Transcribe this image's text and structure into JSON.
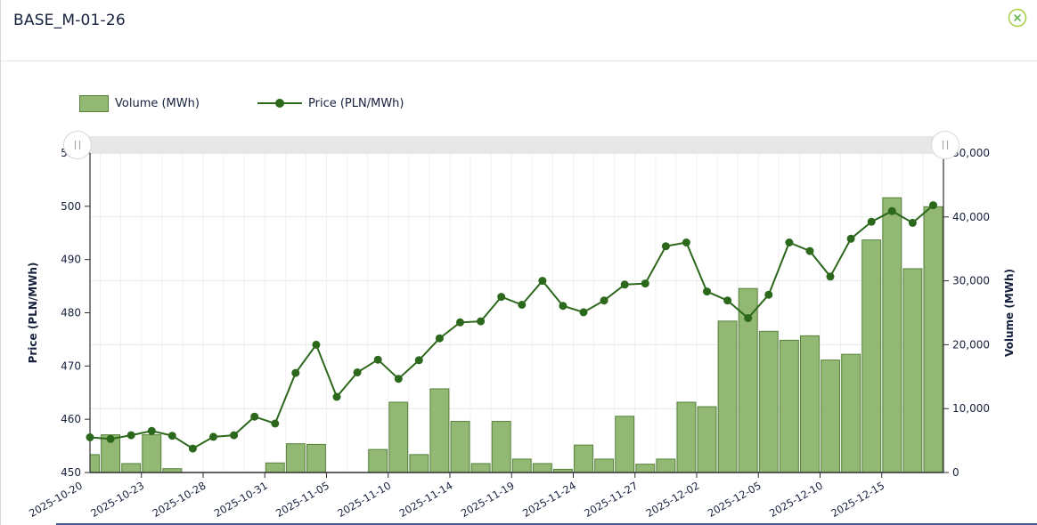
{
  "window": {
    "title": "BASE_M-01-26"
  },
  "legend": {
    "volume_label": "Volume (MWh)",
    "price_label": "Price (PLN/MWh)"
  },
  "colors": {
    "bar_fill": "#92b873",
    "bar_stroke": "#55823b",
    "line": "#2c681c",
    "grid_h": "#e7e7e7",
    "grid_v": "#f1f1f1",
    "axis": "#2f2f2f",
    "text": "#16213e",
    "scrollbar_track": "#e7e7e7",
    "handle_fill": "#ffffff",
    "handle_stroke": "#d6d6d6",
    "handle_glyph": "#aaaaaa",
    "close_circle": "#abd14c",
    "close_x": "#5cb748"
  },
  "chart_data": {
    "type": "bar+line",
    "x": [
      "2025-10-20",
      "2025-10-21",
      "2025-10-22",
      "2025-10-23",
      "2025-10-24",
      "2025-10-27",
      "2025-10-28",
      "2025-10-29",
      "2025-10-30",
      "2025-10-31",
      "2025-11-03",
      "2025-11-04",
      "2025-11-05",
      "2025-11-06",
      "2025-11-07",
      "2025-11-10",
      "2025-11-12",
      "2025-11-13",
      "2025-11-14",
      "2025-11-17",
      "2025-11-18",
      "2025-11-19",
      "2025-11-20",
      "2025-11-21",
      "2025-11-24",
      "2025-11-25",
      "2025-11-26",
      "2025-11-27",
      "2025-11-28",
      "2025-12-01",
      "2025-12-02",
      "2025-12-03",
      "2025-12-04",
      "2025-12-05",
      "2025-12-08",
      "2025-12-09",
      "2025-12-10",
      "2025-12-11",
      "2025-12-12",
      "2025-12-15",
      "2025-12-16",
      "2025-12-17"
    ],
    "labeled_x_indices": [
      0,
      3,
      6,
      9,
      12,
      15,
      18,
      21,
      24,
      27,
      30,
      33,
      36,
      39
    ],
    "series": [
      {
        "name": "Volume (MWh)",
        "type": "bar",
        "yaxis": "right",
        "values": [
          2800,
          5900,
          1400,
          5900,
          600,
          0,
          0,
          0,
          0,
          1500,
          4500,
          4400,
          0,
          0,
          3600,
          11000,
          2800,
          13100,
          8000,
          1400,
          8000,
          2100,
          1400,
          500,
          4300,
          2100,
          8800,
          1300,
          2100,
          11000,
          10300,
          23700,
          28800,
          22100,
          20700,
          21400,
          17600,
          18500,
          36400,
          43000,
          31900,
          41600
        ]
      },
      {
        "name": "Price (PLN/MWh)",
        "type": "line",
        "yaxis": "left",
        "values": [
          456.6,
          456.3,
          457.0,
          457.8,
          456.9,
          454.5,
          456.7,
          457.0,
          460.5,
          459.2,
          468.7,
          474.0,
          464.2,
          468.8,
          471.2,
          467.6,
          471.1,
          475.2,
          478.2,
          478.4,
          483.0,
          481.5,
          486.0,
          481.3,
          480.1,
          482.3,
          485.3,
          485.5,
          492.5,
          493.2,
          484.0,
          482.3,
          479.0,
          483.4,
          493.2,
          491.6,
          486.8,
          493.9,
          497.1,
          499.1,
          496.9,
          500.2
        ]
      }
    ],
    "left_axis": {
      "title": "Price (PLN/MWh)",
      "min": 450,
      "max": 510,
      "tick_labels": [
        "450",
        "460",
        "470",
        "480",
        "490",
        "500",
        "510"
      ]
    },
    "right_axis": {
      "title": "Volume (MWh)",
      "min": 0,
      "max": 50000,
      "tick_labels": [
        "0",
        "10,000",
        "20,000",
        "30,000",
        "40,000",
        "50,000"
      ]
    },
    "grid": {
      "horizontal": true,
      "vertical": true
    },
    "legend_position": "top-left",
    "has_range_scrollbar": true
  }
}
